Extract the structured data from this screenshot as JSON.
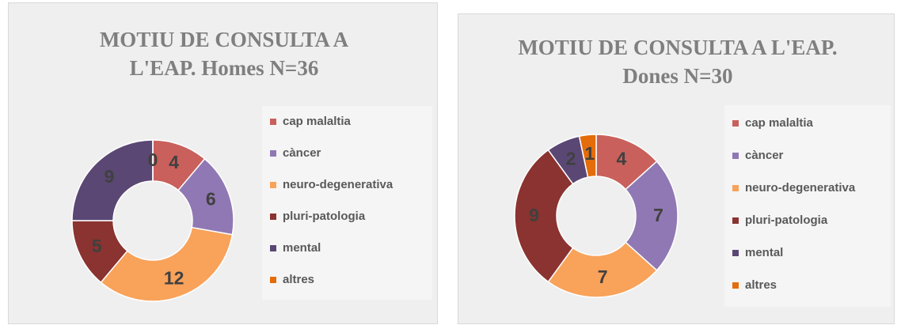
{
  "chart_data": [
    {
      "type": "donut",
      "title": "MOTIU DE CONSULTA A L'EAP. Homes N=36",
      "categories": [
        "cap malaltia",
        "càncer",
        "neuro-degenerativa",
        "pluri-patologia",
        "mental",
        "altres"
      ],
      "values": [
        4,
        6,
        12,
        5,
        9,
        0
      ],
      "colors": [
        "#c9605c",
        "#9078b4",
        "#f8a25a",
        "#8a3330",
        "#5a4774",
        "#e46c0a"
      ],
      "legend": "right"
    },
    {
      "type": "donut",
      "title": "MOTIU DE CONSULTA A L'EAP. Dones N=30",
      "categories": [
        "cap malaltia",
        "càncer",
        "neuro-degenerativa",
        "pluri-patologia",
        "mental",
        "altres"
      ],
      "values": [
        4,
        7,
        7,
        9,
        2,
        1
      ],
      "colors": [
        "#c9605c",
        "#9078b4",
        "#f8a25a",
        "#8a3330",
        "#5a4774",
        "#e46c0a"
      ],
      "legend": "right"
    }
  ]
}
